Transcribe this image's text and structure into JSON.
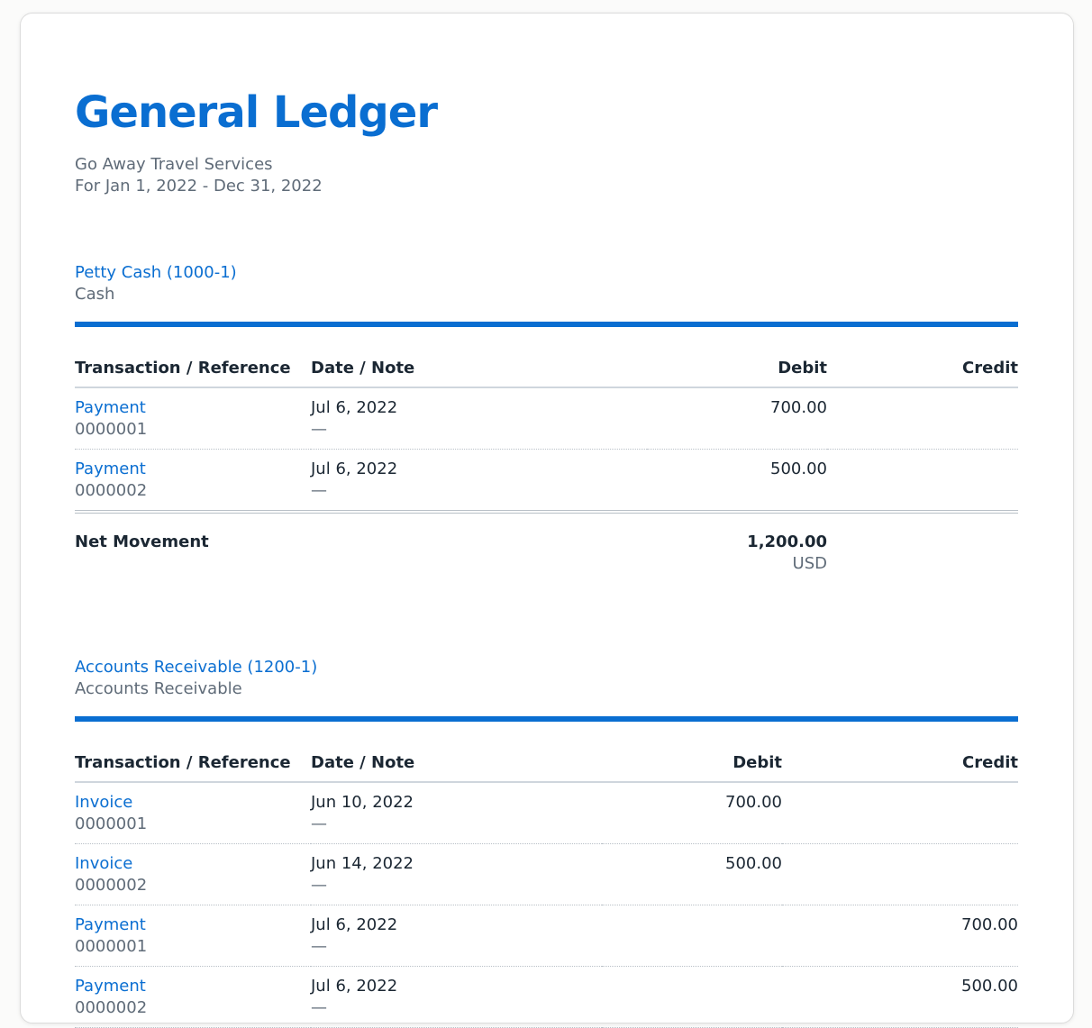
{
  "header": {
    "title": "General Ledger",
    "company": "Go Away Travel Services",
    "period": "For Jan 1, 2022 - Dec 31, 2022"
  },
  "accounts": [
    {
      "name": "Petty Cash (1000-1)",
      "type": "Cash",
      "columns": [
        "Transaction / Reference",
        "Date / Note",
        "Debit",
        "Credit"
      ],
      "rows": [
        {
          "transaction": "Payment",
          "reference": "0000001",
          "date": "Jul 6, 2022",
          "note": "—",
          "debit": "700.00"
        },
        {
          "transaction": "Payment",
          "reference": "0000002",
          "date": "Jul 6, 2022",
          "note": "—",
          "debit": "500.00"
        }
      ],
      "total": {
        "label": "Net Movement",
        "debit": "1,200.00",
        "currency": "USD"
      }
    },
    {
      "name": "Accounts Receivable (1200-1)",
      "type": "Accounts Receivable",
      "columns": [
        "Transaction / Reference",
        "Date / Note",
        "Debit",
        "Credit"
      ],
      "rows": [
        {
          "transaction": "Invoice",
          "reference": "0000001",
          "date": "Jun 10, 2022",
          "note": "—",
          "debit": "700.00"
        },
        {
          "transaction": "Invoice",
          "reference": "0000002",
          "date": "Jun 14, 2022",
          "note": "—",
          "debit": "500.00"
        },
        {
          "transaction": "Payment",
          "reference": "0000001",
          "date": "Jul 6, 2022",
          "note": "—",
          "credit": "700.00"
        },
        {
          "transaction": "Payment",
          "reference": "0000002",
          "date": "Jul 6, 2022",
          "note": "—",
          "credit": "500.00"
        }
      ]
    }
  ]
}
